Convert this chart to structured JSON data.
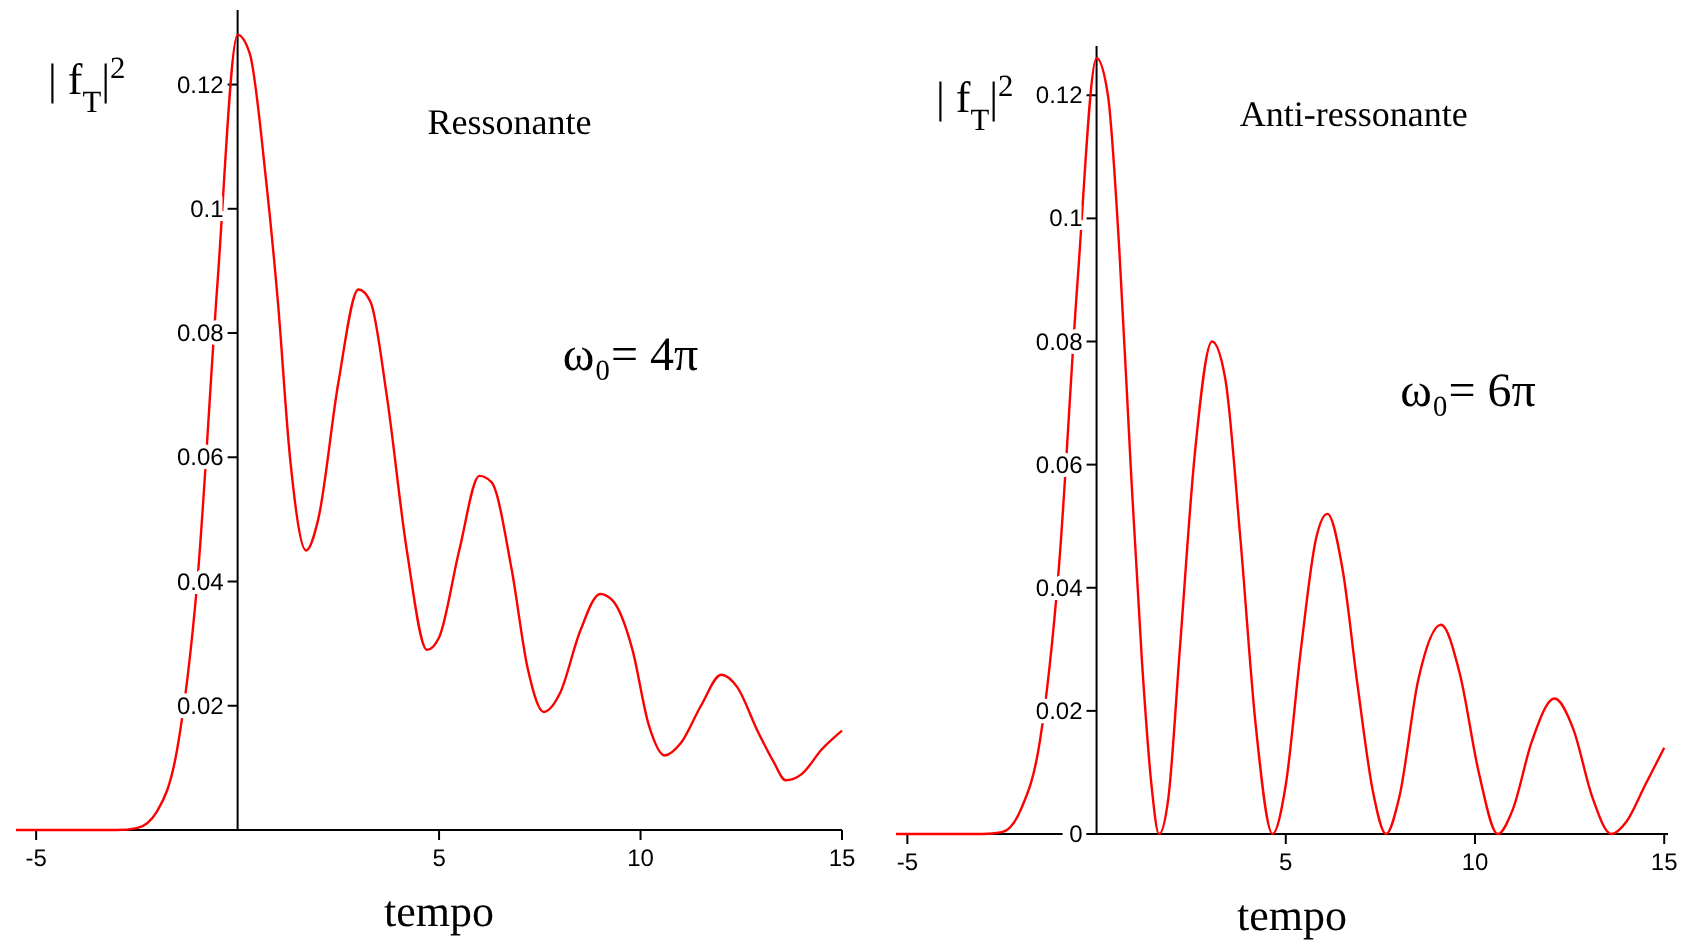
{
  "chart_data": [
    {
      "type": "line",
      "title": "Ressonante",
      "xlabel": "tempo",
      "ylabel": "| f$_{T}$|$^{2}$",
      "annotations": [
        "ω₀= 4π"
      ],
      "x": [
        -5.5,
        -3,
        -2.5,
        -2,
        -1.5,
        -1,
        -0.5,
        0,
        0.3,
        0.7,
        1.0,
        1.3,
        1.7,
        2.0,
        2.5,
        3.0,
        3.3,
        3.7,
        4.2,
        4.7,
        5.0,
        5.5,
        6.0,
        6.3,
        6.8,
        7.2,
        7.6,
        8.0,
        8.5,
        9.0,
        9.3,
        9.8,
        10.2,
        10.6,
        11.0,
        11.5,
        12.0,
        12.4,
        12.9,
        13.3,
        13.6,
        14.0,
        14.5,
        15
      ],
      "series": [
        {
          "color": "#ff0000",
          "values": [
            0,
            0,
            0.0003,
            0.003,
            0.013,
            0.04,
            0.088,
            0.128,
            0.125,
            0.105,
            0.085,
            0.06,
            0.045,
            0.05,
            0.072,
            0.087,
            0.085,
            0.07,
            0.045,
            0.029,
            0.031,
            0.045,
            0.057,
            0.056,
            0.042,
            0.026,
            0.019,
            0.022,
            0.032,
            0.038,
            0.037,
            0.029,
            0.017,
            0.012,
            0.014,
            0.02,
            0.025,
            0.023,
            0.016,
            0.011,
            0.008,
            0.009,
            0.013,
            0.016
          ]
        }
      ],
      "xlim": [
        -5.5,
        15
      ],
      "ylim": [
        0,
        0.132
      ],
      "xticks": [
        -5,
        5,
        10,
        15
      ],
      "yticks": [
        0.02,
        0.04,
        0.06,
        0.08,
        0.1,
        0.12
      ],
      "grid": false
    },
    {
      "type": "line",
      "title": "Anti-ressonante",
      "xlabel": "tempo",
      "ylabel": "| f$_{T}$|$^{2}$",
      "annotations": [
        "ω₀= 6π"
      ],
      "x": [
        -5.3,
        -3,
        -2.5,
        -2,
        -1.5,
        -1,
        -0.5,
        0,
        0.3,
        0.6,
        0.9,
        1.2,
        1.45,
        1.65,
        1.9,
        2.2,
        2.6,
        3.05,
        3.4,
        3.8,
        4.2,
        4.65,
        5.0,
        5.4,
        5.8,
        6.1,
        6.5,
        6.9,
        7.3,
        7.65,
        8.0,
        8.5,
        9.1,
        9.6,
        10.1,
        10.6,
        11.0,
        11.5,
        12.1,
        12.6,
        13.1,
        13.6,
        14.0,
        14.5,
        15
      ],
      "series": [
        {
          "color": "#ff0000",
          "values": [
            0,
            0,
            0.0003,
            0.004,
            0.015,
            0.043,
            0.09,
            0.126,
            0.12,
            0.095,
            0.06,
            0.028,
            0.008,
            0,
            0.006,
            0.03,
            0.062,
            0.08,
            0.074,
            0.048,
            0.018,
            0,
            0.008,
            0.03,
            0.048,
            0.052,
            0.043,
            0.024,
            0.007,
            0,
            0.006,
            0.025,
            0.034,
            0.026,
            0.01,
            0,
            0.004,
            0.015,
            0.022,
            0.017,
            0.006,
            0,
            0.002,
            0.008,
            0.014
          ]
        }
      ],
      "xlim": [
        -5.3,
        15.1
      ],
      "ylim": [
        0,
        0.128
      ],
      "xticks": [
        -5,
        5,
        10,
        15
      ],
      "yticks": [
        0,
        0.02,
        0.04,
        0.06,
        0.08,
        0.1,
        0.12
      ],
      "grid": false
    }
  ]
}
